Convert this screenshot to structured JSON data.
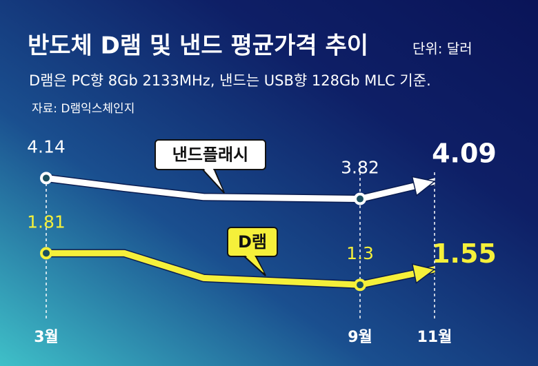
{
  "chart_data": {
    "type": "line",
    "title": "반도체 D램 및 낸드 평균가격 추이",
    "unit": "단위: 달러",
    "subtitle": "D램은 PC향 8Gb 2133MHz, 낸드는 USB향 128Gb MLC 기준.",
    "source": "자료: D램익스체인지",
    "categories": [
      "3월",
      null,
      null,
      "9월",
      "11월"
    ],
    "series": [
      {
        "name": "낸드플래시",
        "color": "#ffffff",
        "values": [
          4.14,
          3.99,
          3.85,
          3.82,
          4.09
        ]
      },
      {
        "name": "D램",
        "color": "#f5f03a",
        "axis": "y2",
        "values": [
          1.81,
          1.81,
          1.41,
          1.3,
          1.55
        ]
      }
    ],
    "ylim": [
      2.0,
      4.76
    ],
    "y2lim": [
      0.78,
      3.67
    ]
  }
}
